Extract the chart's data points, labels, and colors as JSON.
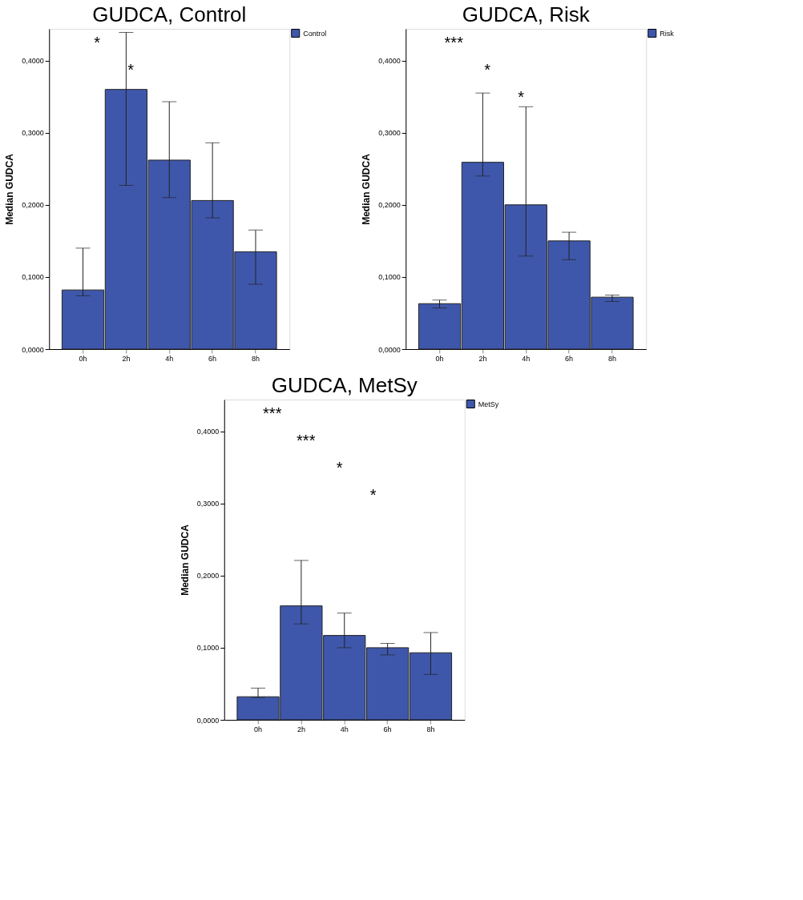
{
  "chart_data": [
    {
      "type": "bar",
      "title": "GUDCA, Control",
      "ylabel": "Median GUDCA",
      "categories": [
        "0h",
        "2h",
        "4h",
        "6h",
        "8h"
      ],
      "series": [
        {
          "name": "Control",
          "color": "#3f57ab",
          "values": [
            0.082,
            0.36,
            0.262,
            0.206,
            0.135
          ],
          "errors": [
            [
              0.074,
              0.14
            ],
            [
              0.227,
              0.439
            ],
            [
              0.21,
              0.343
            ],
            [
              0.182,
              0.286
            ],
            [
              0.09,
              0.165
            ]
          ]
        }
      ],
      "ylim": [
        0,
        0.444
      ],
      "yticks": [
        {
          "value": 0,
          "label": "0,0000"
        },
        {
          "value": 0.1,
          "label": "0,1000"
        },
        {
          "value": 0.2,
          "label": "0,2000"
        },
        {
          "value": 0.3,
          "label": "0,3000"
        },
        {
          "value": 0.4,
          "label": "0,4000"
        }
      ],
      "grid": false,
      "legend": "top right",
      "annotations": [
        "*",
        "*"
      ]
    },
    {
      "type": "bar",
      "title": "GUDCA, Risk",
      "ylabel": "Median GUDCA",
      "categories": [
        "0h",
        "2h",
        "4h",
        "6h",
        "8h"
      ],
      "series": [
        {
          "name": "Risk",
          "color": "#3f57ab",
          "values": [
            0.063,
            0.259,
            0.2,
            0.15,
            0.072
          ],
          "errors": [
            [
              0.057,
              0.068
            ],
            [
              0.24,
              0.355
            ],
            [
              0.129,
              0.336
            ],
            [
              0.124,
              0.162
            ],
            [
              0.066,
              0.075
            ]
          ]
        }
      ],
      "ylim": [
        0,
        0.444
      ],
      "yticks": [
        {
          "value": 0,
          "label": "0,0000"
        },
        {
          "value": 0.1,
          "label": "0,1000"
        },
        {
          "value": 0.2,
          "label": "0,2000"
        },
        {
          "value": 0.3,
          "label": "0,3000"
        },
        {
          "value": 0.4,
          "label": "0,4000"
        }
      ],
      "grid": false,
      "legend": "top right",
      "annotations": [
        "***",
        "*",
        "*"
      ]
    },
    {
      "type": "bar",
      "title": "GUDCA, MetSy",
      "ylabel": "Median GUDCA",
      "categories": [
        "0h",
        "2h",
        "4h",
        "6h",
        "8h"
      ],
      "series": [
        {
          "name": "MetSy",
          "color": "#3f57ab",
          "values": [
            0.032,
            0.158,
            0.117,
            0.1,
            0.093
          ],
          "errors": [
            [
              0.031,
              0.044
            ],
            [
              0.133,
              0.221
            ],
            [
              0.1,
              0.148
            ],
            [
              0.09,
              0.106
            ],
            [
              0.063,
              0.121
            ]
          ]
        }
      ],
      "ylim": [
        0,
        0.444
      ],
      "yticks": [
        {
          "value": 0,
          "label": "0,0000"
        },
        {
          "value": 0.1,
          "label": "0,1000"
        },
        {
          "value": 0.2,
          "label": "0,2000"
        },
        {
          "value": 0.3,
          "label": "0,3000"
        },
        {
          "value": 0.4,
          "label": "0,4000"
        }
      ],
      "grid": false,
      "legend": "top right",
      "annotations": [
        "***",
        "***",
        "*",
        "*"
      ]
    }
  ]
}
